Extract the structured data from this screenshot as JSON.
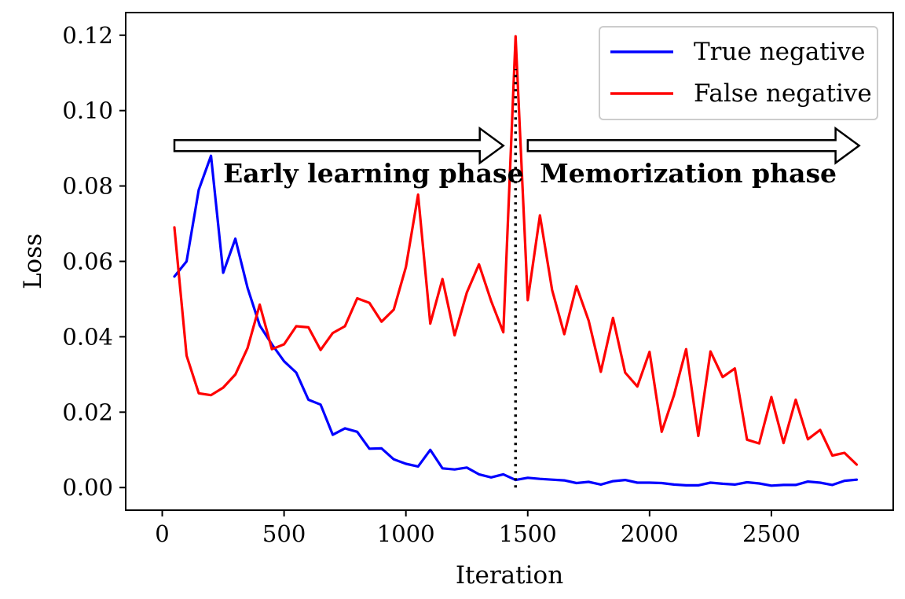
{
  "chart_data": {
    "type": "line",
    "xlabel": "Iteration",
    "ylabel": "Loss",
    "xlim": [
      -150,
      3000
    ],
    "ylim": [
      -0.006,
      0.126
    ],
    "xticks": [
      0,
      500,
      1000,
      1500,
      2000,
      2500
    ],
    "yticks": [
      0.0,
      0.02,
      0.04,
      0.06,
      0.08,
      0.1,
      0.12
    ],
    "xtick_labels": [
      "0",
      "500",
      "1000",
      "1500",
      "2000",
      "2500"
    ],
    "ytick_labels": [
      "0.00",
      "0.02",
      "0.04",
      "0.06",
      "0.08",
      "0.10",
      "0.12"
    ],
    "grid": false,
    "legend_position": "top-right",
    "x": [
      50,
      100,
      150,
      200,
      250,
      300,
      350,
      400,
      450,
      500,
      550,
      600,
      650,
      700,
      750,
      800,
      850,
      900,
      950,
      1000,
      1050,
      1100,
      1150,
      1200,
      1250,
      1300,
      1350,
      1400,
      1450,
      1500,
      1550,
      1600,
      1650,
      1700,
      1750,
      1800,
      1850,
      1900,
      1950,
      2000,
      2050,
      2100,
      2150,
      2200,
      2250,
      2300,
      2350,
      2400,
      2450,
      2500,
      2550,
      2600,
      2650,
      2700,
      2750,
      2800,
      2850
    ],
    "series": [
      {
        "name": "True negative",
        "color": "#0000ff",
        "values": [
          0.056,
          0.06,
          0.079,
          0.088,
          0.057,
          0.066,
          0.053,
          0.043,
          0.038,
          0.0335,
          0.0305,
          0.0233,
          0.022,
          0.014,
          0.0157,
          0.0148,
          0.0103,
          0.0104,
          0.0075,
          0.0063,
          0.0056,
          0.01,
          0.0051,
          0.0048,
          0.0053,
          0.0035,
          0.0027,
          0.0035,
          0.002,
          0.0026,
          0.0023,
          0.0021,
          0.0019,
          0.0012,
          0.0015,
          0.0008,
          0.0017,
          0.002,
          0.0013,
          0.0013,
          0.0012,
          0.0008,
          0.0006,
          0.0006,
          0.0013,
          0.001,
          0.0008,
          0.0014,
          0.0011,
          0.0005,
          0.0007,
          0.0007,
          0.0016,
          0.0013,
          0.0007,
          0.0018,
          0.0021
        ]
      },
      {
        "name": "False negative",
        "color": "#ff0000",
        "values": [
          0.069,
          0.035,
          0.025,
          0.0245,
          0.0265,
          0.03,
          0.037,
          0.0485,
          0.0367,
          0.038,
          0.0428,
          0.0425,
          0.0365,
          0.041,
          0.0428,
          0.0502,
          0.049,
          0.044,
          0.0472,
          0.0585,
          0.0777,
          0.0435,
          0.0553,
          0.0404,
          0.0517,
          0.0592,
          0.0495,
          0.0412,
          0.1197,
          0.0497,
          0.0722,
          0.0524,
          0.0407,
          0.0534,
          0.0443,
          0.0307,
          0.045,
          0.0305,
          0.0268,
          0.036,
          0.0148,
          0.0245,
          0.0367,
          0.0137,
          0.0361,
          0.0293,
          0.0316,
          0.0127,
          0.0117,
          0.024,
          0.0118,
          0.0233,
          0.0128,
          0.0153,
          0.0085,
          0.0092,
          0.0061
        ]
      }
    ],
    "annotations": [
      {
        "text": "Early learning phase",
        "x": 250,
        "y": 0.081
      },
      {
        "text": "Memorization phase",
        "x": 1550,
        "y": 0.081
      }
    ],
    "phase_arrows": [
      {
        "x_start": 50,
        "x_end": 1400,
        "y": 0.0907
      },
      {
        "x_start": 1500,
        "x_end": 2860,
        "y": 0.0907
      }
    ],
    "divider": {
      "x": 1450,
      "y_start": 0.0,
      "y_end": 0.111,
      "style": "dotted"
    }
  }
}
